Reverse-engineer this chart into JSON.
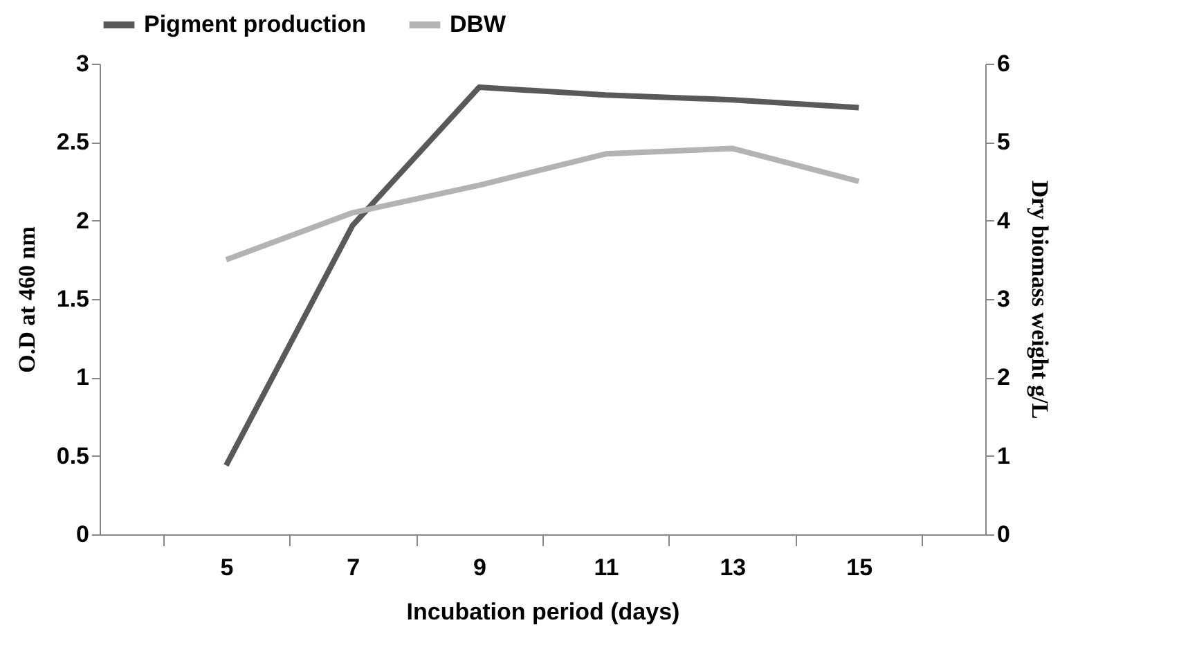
{
  "chart_data": {
    "type": "line",
    "xlabel": "Incubation period (days)",
    "ylabel": "O.D at 460 nm",
    "y2label": "Dry biomass weight  g/L",
    "categories": [
      "5",
      "7",
      "9",
      "11",
      "13",
      "15"
    ],
    "series": [
      {
        "name": "Pigment production",
        "color": "#595959",
        "values": [
          0.44,
          1.97,
          2.85,
          2.8,
          2.77,
          2.72
        ]
      },
      {
        "name": "DBW",
        "color": "#b3b3b3",
        "axis": "y2",
        "values": [
          3.5,
          4.1,
          4.45,
          4.85,
          4.92,
          4.5
        ]
      }
    ],
    "ylim": [
      0,
      3
    ],
    "yticks": [
      0,
      0.5,
      1,
      1.5,
      2,
      2.5,
      3
    ],
    "y2lim": [
      0,
      6
    ],
    "y2ticks": [
      0,
      1,
      2,
      3,
      4,
      5,
      6
    ],
    "legend": "top",
    "grid": false,
    "marker": "none",
    "line_style": "solid"
  }
}
